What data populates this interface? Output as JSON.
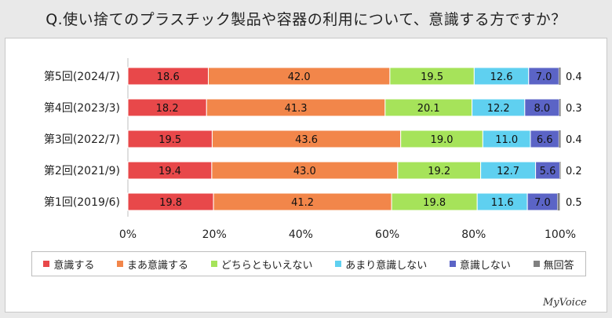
{
  "chart_data": {
    "type": "bar",
    "orientation": "horizontal",
    "stacked": true,
    "percent_stacked": true,
    "title": "Q.使い捨てのプラスチック製品や容器の利用について、意識する方ですか？",
    "categories": [
      "第5回(2024/7)",
      "第4回(2023/3)",
      "第3回(2022/7)",
      "第2回(2021/9)",
      "第1回(2019/6)"
    ],
    "series": [
      {
        "name": "意識する",
        "color": "#e8484a",
        "values": [
          18.6,
          18.2,
          19.5,
          19.4,
          19.8
        ]
      },
      {
        "name": "まあ意識する",
        "color": "#f2864a",
        "values": [
          42.0,
          41.3,
          43.6,
          43.0,
          41.2
        ]
      },
      {
        "name": "どちらともいえない",
        "color": "#a6e35a",
        "values": [
          19.5,
          20.1,
          19.0,
          19.2,
          19.8
        ]
      },
      {
        "name": "あまり意識しない",
        "color": "#5fd0f0",
        "values": [
          12.6,
          12.2,
          11.0,
          12.7,
          11.6
        ]
      },
      {
        "name": "意識しない",
        "color": "#5b64c6",
        "values": [
          7.0,
          8.0,
          6.6,
          5.6,
          7.0
        ]
      },
      {
        "name": "無回答",
        "color": "#808080",
        "values": [
          0.4,
          0.3,
          0.4,
          0.2,
          0.5
        ]
      }
    ],
    "xlim": [
      0,
      100
    ],
    "xticks": [
      "0%",
      "20%",
      "40%",
      "60%",
      "80%",
      "100%"
    ],
    "legend_position": "bottom"
  },
  "brand": "MyVoice"
}
